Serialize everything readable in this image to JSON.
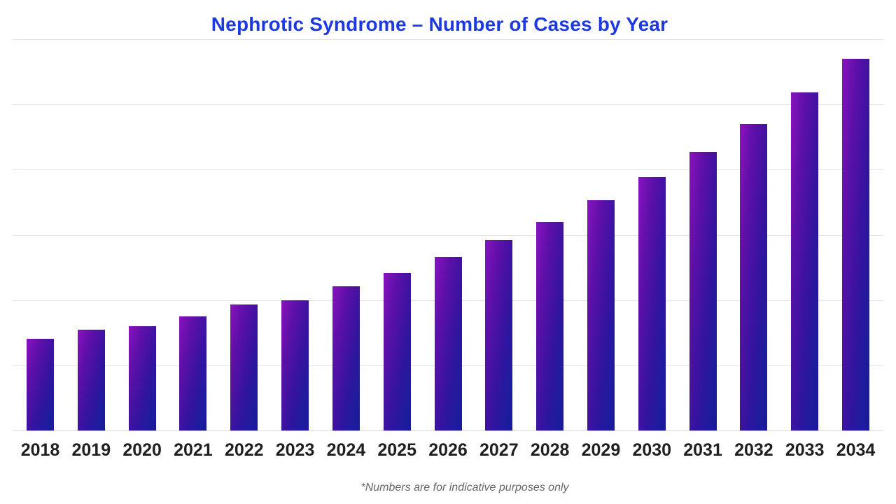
{
  "title": "Nephrotic Syndrome – Number of Cases by Year",
  "footnote": "*Numbers are for indicative purposes only",
  "colors": {
    "background": "#ffffff",
    "title_text": "#1c39e2",
    "gridline": "#e4e4e4",
    "axis_baseline": "#d5d5d5",
    "year_label_text": "#1f1f1f",
    "footnote_text": "#666666",
    "bar_gradient_top_left": "#8912c0",
    "bar_gradient_mid": "#31149f",
    "bar_gradient_bottom_right": "#1a1a9b"
  },
  "chart_data": {
    "type": "bar",
    "title": "Nephrotic Syndrome – Number of Cases by Year",
    "categories": [
      "2018",
      "2019",
      "2020",
      "2021",
      "2022",
      "2023",
      "2024",
      "2025",
      "2026",
      "2027",
      "2028",
      "2029",
      "2030",
      "2031",
      "2032",
      "2033",
      "2034"
    ],
    "values": [
      141,
      155,
      160,
      175,
      193,
      200,
      221,
      242,
      266,
      292,
      320,
      353,
      389,
      427,
      470,
      518,
      570
    ],
    "xlabel": "",
    "ylabel": "",
    "ylim": [
      0,
      600
    ],
    "gridline_step": 100,
    "grid": true,
    "y_tick_labels_visible": false,
    "legend_position": "none",
    "annotation": "*Numbers are for indicative purposes only"
  }
}
